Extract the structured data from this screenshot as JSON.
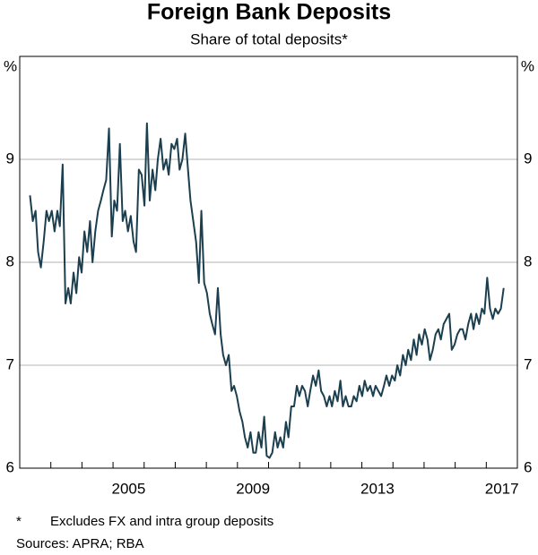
{
  "chart_data": {
    "type": "line",
    "title": "Foreign Bank Deposits",
    "subtitle": "Share of total deposits*",
    "ylabel": "%",
    "y2label": "%",
    "note_marker": "*",
    "note": "Excludes FX and intra group deposits",
    "sources": "Sources: APRA; RBA",
    "xlim": [
      2002,
      2018
    ],
    "xticks": [
      {
        "value": 2005,
        "label": "2005"
      },
      {
        "value": 2009,
        "label": "2009"
      },
      {
        "value": 2013,
        "label": "2013"
      },
      {
        "value": 2017,
        "label": "2017"
      }
    ],
    "xminorticks": [
      2003,
      2004,
      2005,
      2006,
      2007,
      2008,
      2009,
      2010,
      2011,
      2012,
      2013,
      2014,
      2015,
      2016,
      2017
    ],
    "ylim": [
      6,
      10
    ],
    "yticks": [
      6,
      7,
      8,
      9
    ],
    "y2lim": [
      6,
      10
    ],
    "y2ticks": [
      6,
      7,
      8,
      9
    ],
    "grid": true,
    "x": [
      2002.33,
      2002.42,
      2002.51,
      2002.59,
      2002.68,
      2002.77,
      2002.86,
      2002.94,
      2003.03,
      2003.12,
      2003.21,
      2003.29,
      2003.38,
      2003.47,
      2003.56,
      2003.64,
      2003.73,
      2003.82,
      2003.91,
      2003.99,
      2004.08,
      2004.17,
      2004.26,
      2004.34,
      2004.43,
      2004.52,
      2004.61,
      2004.69,
      2004.78,
      2004.87,
      2004.96,
      2005.04,
      2005.13,
      2005.22,
      2005.31,
      2005.39,
      2005.48,
      2005.57,
      2005.66,
      2005.74,
      2005.83,
      2005.92,
      2006.01,
      2006.09,
      2006.18,
      2006.27,
      2006.36,
      2006.44,
      2006.53,
      2006.62,
      2006.71,
      2006.79,
      2006.88,
      2006.97,
      2007.06,
      2007.14,
      2007.23,
      2007.32,
      2007.41,
      2007.49,
      2007.58,
      2007.67,
      2007.76,
      2007.84,
      2007.93,
      2008.02,
      2008.11,
      2008.19,
      2008.28,
      2008.37,
      2008.46,
      2008.54,
      2008.63,
      2008.72,
      2008.81,
      2008.89,
      2008.98,
      2009.07,
      2009.16,
      2009.24,
      2009.33,
      2009.42,
      2009.51,
      2009.59,
      2009.68,
      2009.77,
      2009.86,
      2009.94,
      2010.03,
      2010.12,
      2010.21,
      2010.29,
      2010.38,
      2010.47,
      2010.56,
      2010.64,
      2010.73,
      2010.82,
      2010.91,
      2010.99,
      2011.08,
      2011.17,
      2011.26,
      2011.34,
      2011.43,
      2011.52,
      2011.61,
      2011.69,
      2011.78,
      2011.87,
      2011.96,
      2012.04,
      2012.13,
      2012.22,
      2012.31,
      2012.39,
      2012.48,
      2012.57,
      2012.66,
      2012.74,
      2012.83,
      2012.92,
      2013.01,
      2013.09,
      2013.18,
      2013.27,
      2013.36,
      2013.44,
      2013.53,
      2013.62,
      2013.71,
      2013.79,
      2013.88,
      2013.97,
      2014.06,
      2014.14,
      2014.23,
      2014.32,
      2014.41,
      2014.49,
      2014.58,
      2014.67,
      2014.76,
      2014.84,
      2014.93,
      2015.02,
      2015.11,
      2015.19,
      2015.28,
      2015.37,
      2015.46,
      2015.54,
      2015.63,
      2015.72,
      2015.81,
      2015.89,
      2015.98,
      2016.07,
      2016.16,
      2016.24,
      2016.33,
      2016.42,
      2016.51,
      2016.59,
      2016.68,
      2016.77,
      2016.86,
      2016.94,
      2017.03,
      2017.12,
      2017.21,
      2017.29,
      2017.38,
      2017.47,
      2017.56
    ],
    "series": [
      {
        "color": "#1c3f4f",
        "values": [
          8.65,
          8.4,
          8.5,
          8.1,
          7.95,
          8.2,
          8.5,
          8.4,
          8.5,
          8.3,
          8.5,
          8.35,
          8.95,
          7.6,
          7.75,
          7.6,
          7.9,
          7.7,
          8.05,
          7.9,
          8.3,
          8.1,
          8.4,
          8.0,
          8.3,
          8.5,
          8.6,
          8.7,
          8.8,
          9.3,
          8.25,
          8.6,
          8.5,
          9.15,
          8.4,
          8.5,
          8.3,
          8.45,
          8.2,
          8.1,
          8.9,
          8.85,
          8.55,
          9.35,
          8.6,
          8.9,
          8.7,
          9.0,
          9.2,
          8.9,
          9.0,
          8.85,
          9.15,
          9.1,
          9.2,
          8.9,
          9.0,
          9.25,
          8.9,
          8.6,
          8.4,
          8.2,
          7.8,
          8.5,
          7.8,
          7.7,
          7.5,
          7.4,
          7.3,
          7.75,
          7.3,
          7.1,
          7.0,
          7.1,
          6.75,
          6.8,
          6.7,
          6.55,
          6.45,
          6.3,
          6.2,
          6.35,
          6.15,
          6.15,
          6.35,
          6.2,
          6.5,
          6.12,
          6.1,
          6.15,
          6.35,
          6.2,
          6.3,
          6.2,
          6.45,
          6.3,
          6.6,
          6.6,
          6.8,
          6.7,
          6.8,
          6.75,
          6.6,
          6.75,
          6.9,
          6.8,
          6.95,
          6.75,
          6.7,
          6.6,
          6.7,
          6.6,
          6.75,
          6.65,
          6.85,
          6.6,
          6.7,
          6.6,
          6.6,
          6.7,
          6.65,
          6.8,
          6.7,
          6.85,
          6.75,
          6.8,
          6.7,
          6.8,
          6.75,
          6.7,
          6.8,
          6.9,
          6.8,
          6.9,
          6.85,
          7.0,
          6.9,
          7.1,
          7.0,
          7.15,
          7.05,
          7.25,
          7.1,
          7.3,
          7.2,
          7.35,
          7.25,
          7.05,
          7.15,
          7.3,
          7.35,
          7.25,
          7.4,
          7.45,
          7.5,
          7.15,
          7.2,
          7.3,
          7.35,
          7.35,
          7.25,
          7.4,
          7.5,
          7.35,
          7.5,
          7.4,
          7.55,
          7.5,
          7.85,
          7.55,
          7.45,
          7.55,
          7.5,
          7.55,
          7.75
        ]
      }
    ]
  }
}
